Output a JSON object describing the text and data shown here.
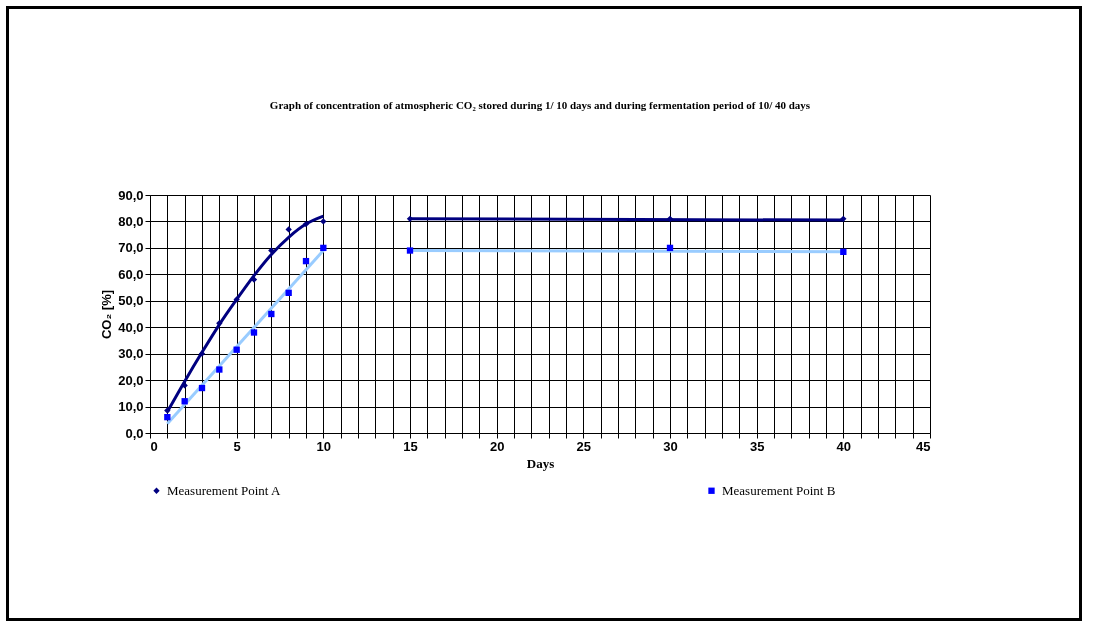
{
  "chart_data": {
    "type": "scatter",
    "title": "Graph of concentration of atmospheric CO₂ stored during 1/ 10 days  and during  fermentation period of 10/ 40 days",
    "xlabel": "Days",
    "ylabel": "CO₂ [%]",
    "xlim": [
      0,
      45
    ],
    "xticks": [
      0,
      {
        "value": 1,
        "label": null
      },
      {
        "value": 2,
        "label": null
      },
      {
        "value": 3,
        "label": null
      },
      {
        "value": 4,
        "label": null
      },
      5,
      {
        "value": 6,
        "label": null
      },
      {
        "value": 7,
        "label": null
      },
      {
        "value": 8,
        "label": null
      },
      {
        "value": 9,
        "label": null
      },
      10,
      {
        "value": 11,
        "label": null
      },
      {
        "value": 12,
        "label": null
      },
      {
        "value": 13,
        "label": null
      },
      {
        "value": 14,
        "label": null
      },
      15,
      {
        "value": 16,
        "label": null
      },
      {
        "value": 17,
        "label": null
      },
      {
        "value": 18,
        "label": null
      },
      {
        "value": 19,
        "label": null
      },
      20,
      {
        "value": 21,
        "label": null
      },
      {
        "value": 22,
        "label": null
      },
      {
        "value": 23,
        "label": null
      },
      {
        "value": 24,
        "label": null
      },
      25,
      {
        "value": 26,
        "label": null
      },
      {
        "value": 27,
        "label": null
      },
      {
        "value": 28,
        "label": null
      },
      {
        "value": 29,
        "label": null
      },
      30,
      {
        "value": 31,
        "label": null
      },
      {
        "value": 32,
        "label": null
      },
      {
        "value": 33,
        "label": null
      },
      {
        "value": 34,
        "label": null
      },
      35,
      {
        "value": 36,
        "label": null
      },
      {
        "value": 37,
        "label": null
      },
      {
        "value": 38,
        "label": null
      },
      {
        "value": 39,
        "label": null
      },
      40,
      {
        "value": 41,
        "label": null
      },
      {
        "value": 42,
        "label": null
      },
      {
        "value": 43,
        "label": null
      },
      {
        "value": 44,
        "label": null
      },
      45
    ],
    "ylim": [
      0,
      90
    ],
    "yticks": [
      {
        "value": 0,
        "label": "0,0"
      },
      {
        "value": 10,
        "label": "10,0"
      },
      {
        "value": 20,
        "label": "20,0"
      },
      {
        "value": 30,
        "label": "30,0"
      },
      {
        "value": 40,
        "label": "40,0"
      },
      {
        "value": 50,
        "label": "50,0"
      },
      {
        "value": 60,
        "label": "60,0"
      },
      {
        "value": 70,
        "label": "70,0"
      },
      {
        "value": 80,
        "label": "80,0"
      },
      {
        "value": 90,
        "label": "90,0"
      }
    ],
    "grid": true,
    "legend": "bottom",
    "series": [
      {
        "name": "Measurement  Point A",
        "marker": "diamond",
        "color": "#000080",
        "x": [
          1,
          2,
          3,
          4,
          5,
          6,
          7,
          8,
          9,
          10,
          15,
          30,
          40
        ],
        "values": [
          8.5,
          18,
          30,
          41.5,
          50.5,
          58,
          69,
          77,
          79,
          80,
          81,
          81,
          81
        ]
      },
      {
        "name": "Measurement  Point B",
        "marker": "square",
        "color": "#0000ff",
        "x": [
          1,
          2,
          3,
          4,
          5,
          6,
          7,
          8,
          9,
          10,
          15,
          30,
          40
        ],
        "values": [
          6,
          12,
          17,
          24,
          31.5,
          38,
          45,
          53,
          65,
          70,
          69,
          70,
          68.5
        ]
      },
      {
        "type": "line",
        "color": "#000080",
        "x": [
          1,
          2,
          3,
          4,
          5,
          6,
          7,
          8,
          9,
          10
        ],
        "values": [
          8,
          19.5,
          30.5,
          41,
          50.5,
          59.5,
          67.5,
          74,
          79,
          82
        ]
      },
      {
        "type": "line",
        "color": "#000080",
        "x": [
          15,
          40
        ],
        "values": [
          81,
          80.5
        ]
      },
      {
        "type": "line",
        "color": "#99ccff",
        "x": [
          1,
          10
        ],
        "values": [
          3.5,
          69
        ]
      },
      {
        "type": "line",
        "color": "#99ccff",
        "x": [
          15,
          40
        ],
        "values": [
          69,
          68.5
        ]
      }
    ]
  }
}
